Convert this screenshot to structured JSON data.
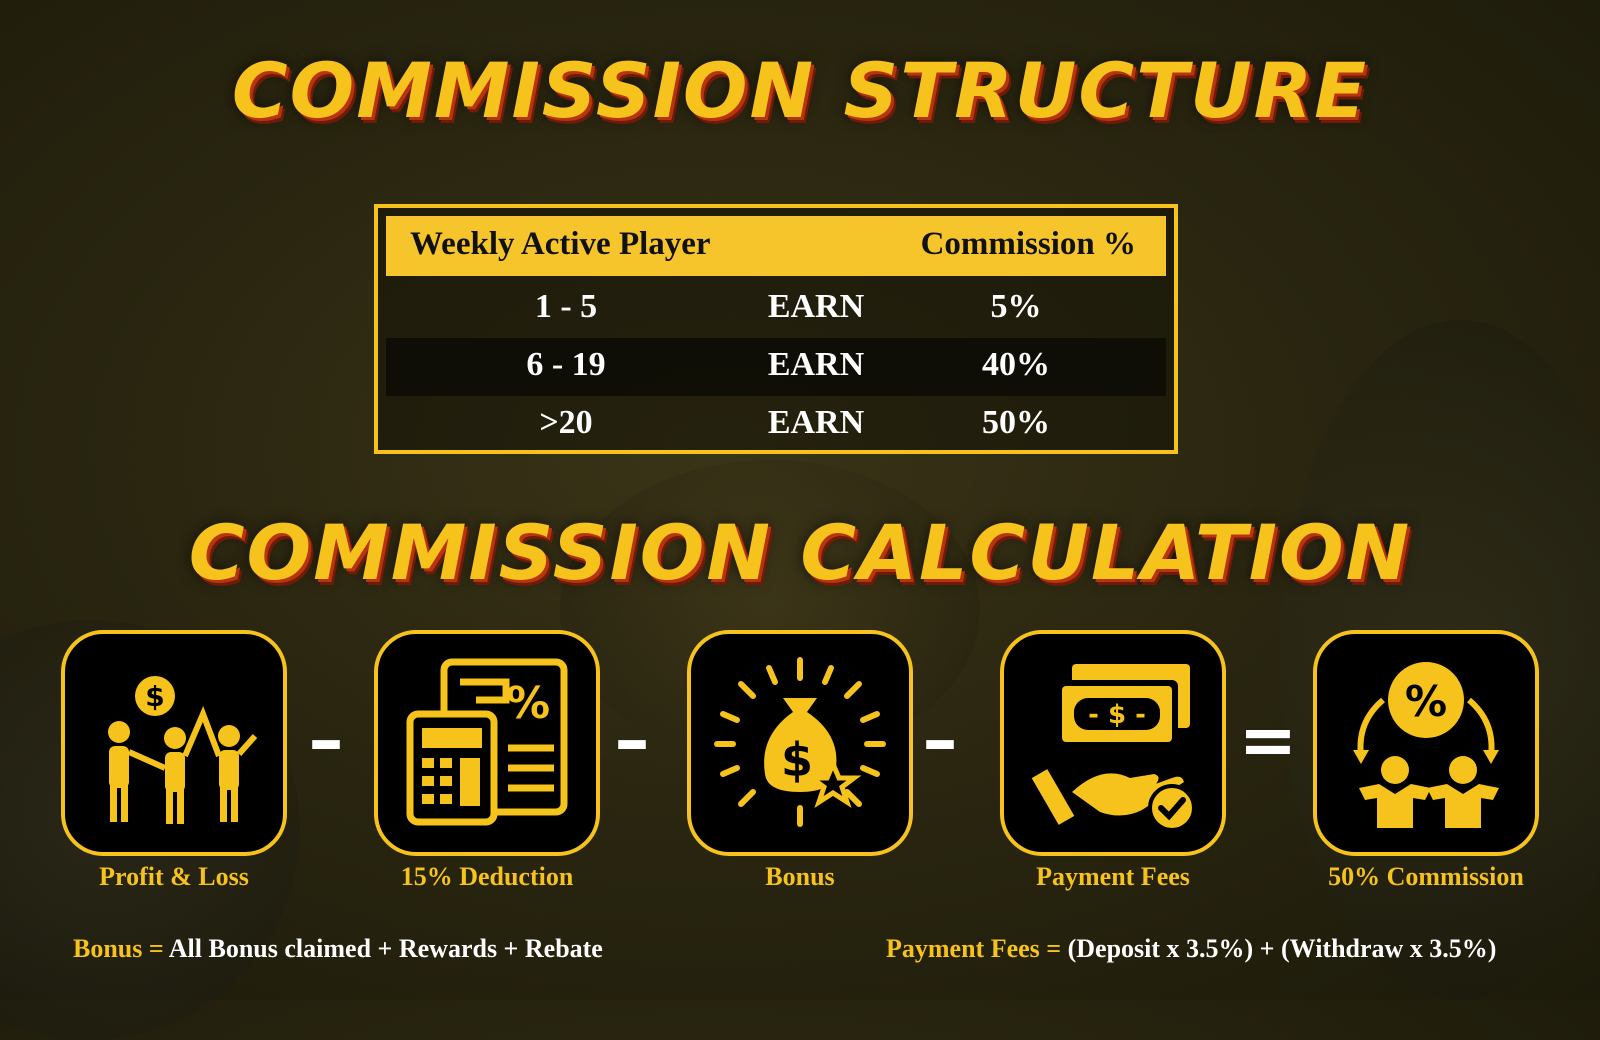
{
  "titles": {
    "structure": "COMMISSION STRUCTURE",
    "calculation": "COMMISSION CALCULATION"
  },
  "table": {
    "header_player": "Weekly Active Player",
    "header_commission": "Commission %",
    "rows": [
      {
        "players": "1 - 5",
        "action": "EARN",
        "commission": "5%"
      },
      {
        "players": "6 - 19",
        "action": "EARN",
        "commission": "40%"
      },
      {
        "players": ">20",
        "action": "EARN",
        "commission": "50%"
      }
    ]
  },
  "steps": [
    {
      "label": "Profit & Loss",
      "icon": "group-money-icon"
    },
    {
      "label": "15% Deduction",
      "icon": "calculator-percent-icon"
    },
    {
      "label": "Bonus",
      "icon": "money-bag-icon"
    },
    {
      "label": "Payment Fees",
      "icon": "cash-hand-icon"
    },
    {
      "label": "50% Commission",
      "icon": "commission-share-icon"
    }
  ],
  "operators": [
    "–",
    "–",
    "–",
    "="
  ],
  "notes": {
    "bonus_key": "Bonus =",
    "bonus_value": "All Bonus claimed + Rewards + Rebate",
    "fees_key": "Payment Fees =",
    "fees_value": "(Deposit x 3.5%) + (Withdraw x 3.5%)"
  },
  "colors": {
    "accent": "#f6c21c",
    "shadow": "#b8340f",
    "text": "#ffffff"
  }
}
